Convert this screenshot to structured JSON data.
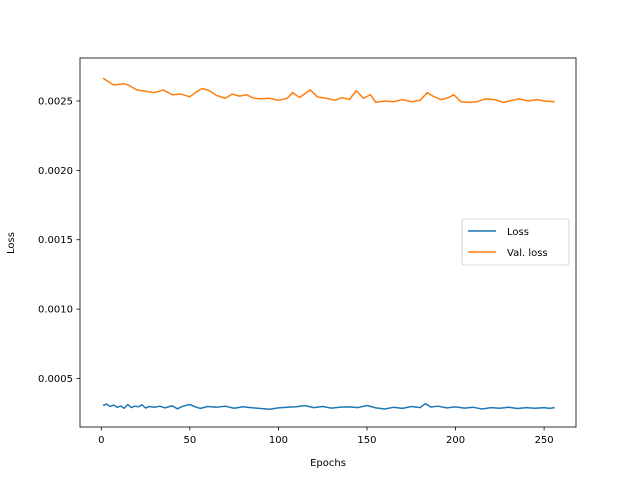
{
  "chart_data": {
    "type": "line",
    "title": "",
    "xlabel": "Epochs",
    "ylabel": "Loss",
    "xlim": [
      -12,
      268
    ],
    "ylim": [
      0.00015,
      0.00281
    ],
    "xticks": [
      0,
      50,
      100,
      150,
      200,
      250
    ],
    "xtick_labels": [
      "0",
      "50",
      "100",
      "150",
      "200",
      "250"
    ],
    "yticks": [
      0.0005,
      0.001,
      0.0015,
      0.002,
      0.0025
    ],
    "ytick_labels": [
      "0.0005",
      "0.0010",
      "0.0015",
      "0.0020",
      "0.0025"
    ],
    "grid": false,
    "legend_position": "center-right",
    "series": [
      {
        "name": "Loss",
        "color": "#1f77b4",
        "points": [
          [
            1,
            0.000305
          ],
          [
            3,
            0.000315
          ],
          [
            5,
            0.000298
          ],
          [
            7,
            0.000308
          ],
          [
            9,
            0.000292
          ],
          [
            11,
            0.000301
          ],
          [
            13,
            0.000285
          ],
          [
            15,
            0.000312
          ],
          [
            17,
            0.00029
          ],
          [
            19,
            0.0003
          ],
          [
            21,
            0.000296
          ],
          [
            23,
            0.00031
          ],
          [
            25,
            0.000287
          ],
          [
            27,
            0.000298
          ],
          [
            30,
            0.000292
          ],
          [
            33,
            0.0003
          ],
          [
            36,
            0.000288
          ],
          [
            40,
            0.000303
          ],
          [
            43,
            0.000281
          ],
          [
            46,
            0.0003
          ],
          [
            50,
            0.000312
          ],
          [
            53,
            0.000296
          ],
          [
            56,
            0.000284
          ],
          [
            60,
            0.000298
          ],
          [
            65,
            0.000292
          ],
          [
            70,
            0.0003
          ],
          [
            75,
            0.000285
          ],
          [
            80,
            0.000296
          ],
          [
            85,
            0.000289
          ],
          [
            90,
            0.000283
          ],
          [
            95,
            0.000278
          ],
          [
            100,
            0.000288
          ],
          [
            105,
            0.000292
          ],
          [
            110,
            0.000296
          ],
          [
            115,
            0.000304
          ],
          [
            120,
            0.00029
          ],
          [
            125,
            0.000298
          ],
          [
            130,
            0.000286
          ],
          [
            135,
            0.000293
          ],
          [
            140,
            0.000295
          ],
          [
            145,
            0.00029
          ],
          [
            150,
            0.000305
          ],
          [
            155,
            0.000288
          ],
          [
            160,
            0.00028
          ],
          [
            165,
            0.000292
          ],
          [
            170,
            0.000284
          ],
          [
            175,
            0.000298
          ],
          [
            180,
            0.00029
          ],
          [
            183,
            0.000318
          ],
          [
            186,
            0.000294
          ],
          [
            190,
            0.0003
          ],
          [
            195,
            0.000288
          ],
          [
            200,
            0.000295
          ],
          [
            205,
            0.000286
          ],
          [
            210,
            0.000292
          ],
          [
            215,
            0.00028
          ],
          [
            220,
            0.00029
          ],
          [
            225,
            0.000285
          ],
          [
            230,
            0.000292
          ],
          [
            235,
            0.000283
          ],
          [
            240,
            0.00029
          ],
          [
            245,
            0.000285
          ],
          [
            250,
            0.00029
          ],
          [
            253,
            0.000284
          ],
          [
            256,
            0.00029
          ]
        ]
      },
      {
        "name": "Val. loss",
        "color": "#ff7f0e",
        "points": [
          [
            1,
            0.002665
          ],
          [
            4,
            0.00264
          ],
          [
            7,
            0.002615
          ],
          [
            10,
            0.00262
          ],
          [
            13,
            0.002625
          ],
          [
            16,
            0.00261
          ],
          [
            20,
            0.00258
          ],
          [
            25,
            0.00257
          ],
          [
            30,
            0.00256
          ],
          [
            35,
            0.00258
          ],
          [
            40,
            0.002545
          ],
          [
            45,
            0.00255
          ],
          [
            50,
            0.00253
          ],
          [
            53,
            0.00256
          ],
          [
            57,
            0.00259
          ],
          [
            61,
            0.002575
          ],
          [
            65,
            0.00254
          ],
          [
            70,
            0.00252
          ],
          [
            74,
            0.00255
          ],
          [
            78,
            0.002535
          ],
          [
            82,
            0.002545
          ],
          [
            86,
            0.00252
          ],
          [
            90,
            0.002515
          ],
          [
            95,
            0.00252
          ],
          [
            100,
            0.002505
          ],
          [
            105,
            0.00252
          ],
          [
            108,
            0.00256
          ],
          [
            112,
            0.002525
          ],
          [
            118,
            0.00258
          ],
          [
            122,
            0.00253
          ],
          [
            127,
            0.00252
          ],
          [
            132,
            0.002505
          ],
          [
            136,
            0.002525
          ],
          [
            140,
            0.00251
          ],
          [
            144,
            0.002575
          ],
          [
            148,
            0.00252
          ],
          [
            152,
            0.002545
          ],
          [
            155,
            0.00249
          ],
          [
            160,
            0.0025
          ],
          [
            165,
            0.002495
          ],
          [
            170,
            0.00251
          ],
          [
            175,
            0.002495
          ],
          [
            180,
            0.002505
          ],
          [
            184,
            0.00256
          ],
          [
            188,
            0.00253
          ],
          [
            192,
            0.00251
          ],
          [
            196,
            0.002525
          ],
          [
            199,
            0.002545
          ],
          [
            203,
            0.002495
          ],
          [
            208,
            0.00249
          ],
          [
            212,
            0.002495
          ],
          [
            217,
            0.002515
          ],
          [
            222,
            0.00251
          ],
          [
            227,
            0.00249
          ],
          [
            232,
            0.002505
          ],
          [
            236,
            0.002515
          ],
          [
            241,
            0.0025
          ],
          [
            246,
            0.00251
          ],
          [
            250,
            0.0025
          ],
          [
            256,
            0.002495
          ]
        ]
      }
    ]
  }
}
